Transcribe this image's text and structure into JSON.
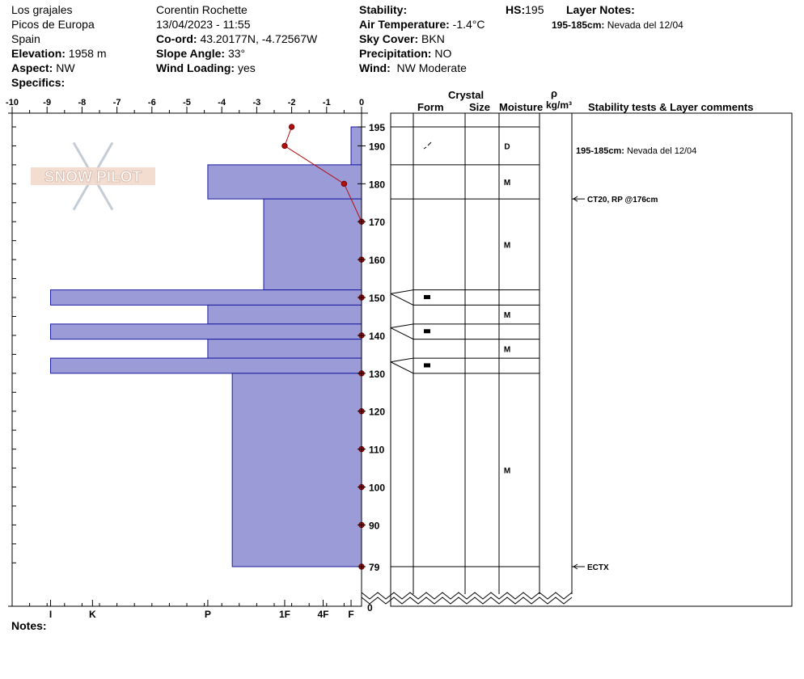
{
  "header": {
    "col1": {
      "location": "Los grajales",
      "region": "Picos de Europa",
      "country": "Spain",
      "elevation_label": "Elevation:",
      "elevation_value": "1958 m",
      "aspect_label": "Aspect:",
      "aspect_value": "NW",
      "specifics_label": "Specifics:"
    },
    "col2": {
      "observer": "Corentin Rochette",
      "datetime": "13/04/2023 - 11:55",
      "coord_label": "Co-ord:",
      "coord_value": "43.20177N, -4.72567W",
      "slope_label": "Slope Angle:",
      "slope_value": "33°",
      "wind_loading_label": "Wind Loading:",
      "wind_loading_value": "yes"
    },
    "col3": {
      "stability_label": "Stability:",
      "air_temp_label": "Air Temperature:",
      "air_temp_value": "-1.4°C",
      "sky_label": "Sky Cover:",
      "sky_value": "BKN",
      "precip_label": "Precipitation:",
      "precip_value": "NO",
      "wind_label": "Wind:",
      "wind_value": "NW Moderate"
    },
    "hs_label": "HS:",
    "hs_value": "195",
    "layer_notes_label": "Layer Notes:",
    "layer_note_range": "195-185cm:",
    "layer_note_text": "Nevada del 12/04"
  },
  "footer": {
    "notes_label": "Notes:"
  },
  "logo_text": "SNOW PILOT",
  "columns": {
    "crystal": "Crystal",
    "form": "Form",
    "size": "Size",
    "moisture": "Moisture",
    "rho": "ρ",
    "density_unit": "kg/m³",
    "stability": "Stability tests & Layer comments"
  },
  "chart_data": {
    "type": "snow-profile",
    "total_depth_cm": 195,
    "temp_axis": {
      "min": -10,
      "max": 0,
      "ticks": [
        -10,
        -9,
        -8,
        -7,
        -6,
        -5,
        -4,
        -3,
        -2,
        -1,
        0
      ],
      "tick_labels": [
        "-10",
        "-9",
        "-8",
        "-7",
        "-6",
        "-5",
        "-4",
        "-3",
        "-2",
        "-1",
        "0"
      ]
    },
    "depth_axis": {
      "min": 79,
      "max": 195,
      "ticks": [
        195,
        190,
        180,
        170,
        160,
        150,
        140,
        130,
        120,
        110,
        100,
        90,
        79
      ],
      "bottom_label": "0"
    },
    "hardness_scale": [
      {
        "label": "I",
        "value": -8.9
      },
      {
        "label": "K",
        "value": -7.7
      },
      {
        "label": "P",
        "value": -4.4
      },
      {
        "label": "1F",
        "value": -2.2
      },
      {
        "label": "4F",
        "value": -1.1
      },
      {
        "label": "F",
        "value": -0.3
      }
    ],
    "layers": [
      {
        "top": 195,
        "bottom": 185,
        "hardness": -0.3,
        "moisture": "D",
        "grain": "decomposing"
      },
      {
        "top": 185,
        "bottom": 176,
        "hardness": -4.4,
        "moisture": "M",
        "grain": ""
      },
      {
        "top": 176,
        "bottom": 152,
        "hardness": -2.8,
        "moisture": "M",
        "grain": ""
      },
      {
        "top": 152,
        "bottom": 148,
        "hardness": -8.9,
        "moisture": "",
        "grain": "ice"
      },
      {
        "top": 148,
        "bottom": 143,
        "hardness": -4.4,
        "moisture": "M",
        "grain": ""
      },
      {
        "top": 143,
        "bottom": 139,
        "hardness": -8.9,
        "moisture": "",
        "grain": "ice"
      },
      {
        "top": 139,
        "bottom": 134,
        "hardness": -4.4,
        "moisture": "M",
        "grain": ""
      },
      {
        "top": 134,
        "bottom": 130,
        "hardness": -8.9,
        "moisture": "",
        "grain": "ice"
      },
      {
        "top": 130,
        "bottom": 79,
        "hardness": -3.7,
        "moisture": "M",
        "grain": ""
      }
    ],
    "temperature_profile": [
      {
        "depth": 195,
        "temp": -2.0
      },
      {
        "depth": 190,
        "temp": -2.2
      },
      {
        "depth": 180,
        "temp": -0.5
      },
      {
        "depth": 170,
        "temp": 0
      },
      {
        "depth": 160,
        "temp": 0
      },
      {
        "depth": 150,
        "temp": 0
      },
      {
        "depth": 140,
        "temp": 0
      },
      {
        "depth": 130,
        "temp": 0
      },
      {
        "depth": 120,
        "temp": 0
      },
      {
        "depth": 110,
        "temp": 0
      },
      {
        "depth": 100,
        "temp": 0
      },
      {
        "depth": 90,
        "temp": 0
      },
      {
        "depth": 79,
        "temp": 0
      }
    ],
    "stability_comments": [
      {
        "depth": 195,
        "range": "195-185cm:",
        "text": "Nevada del 12/04"
      },
      {
        "depth": 176,
        "text": "CT20, RP @176cm"
      },
      {
        "depth": 79,
        "text": "ECTX"
      }
    ]
  }
}
